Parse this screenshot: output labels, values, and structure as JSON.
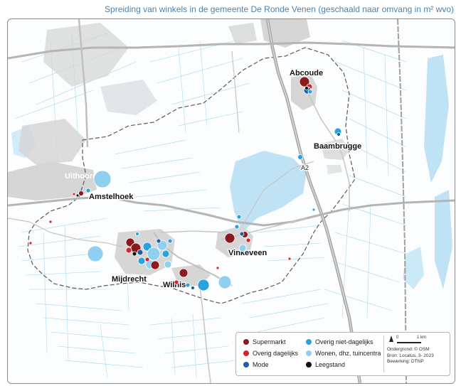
{
  "title": "Spreiding van winkels in de gemeente De Ronde Venen (geschaald naar omvang in m² wvo)",
  "places": {
    "abcoude": "Abcoude",
    "baambrugge": "Baambrugge",
    "uithoorn": "Uithoorn",
    "amstelhoek": "Amstelhoek",
    "vinkeveen": "Vinkeveen",
    "mijdrecht": "Mijdrecht",
    "wilnis": "Wilnis"
  },
  "road_label": "A2",
  "legend": {
    "supermarkt": "Supermarkt",
    "overig_dagelijks": "Overig dagelijks",
    "mode": "Mode",
    "overig_niet_dagelijks": "Overig niet-dagelijks",
    "wonen": "Wonen, dhz, tuincentra",
    "leegstand": "Leegstand"
  },
  "scale": {
    "zero": "0",
    "km": "1 km"
  },
  "credits": [
    "Ondergrond: © OSM",
    "Bron: Locatus, 3- 2023",
    "Bewerking: DTNP"
  ],
  "colors": {
    "supermarkt": "#8b1a1f",
    "overig_dagelijks": "#d7232b",
    "mode": "#1f5fa5",
    "overig_niet_dagelijks": "#2aa3dc",
    "wonen": "#8fd0f0",
    "leegstand": "#111111",
    "water": "#bfe3f5",
    "urban": "#d6d6d6"
  }
}
